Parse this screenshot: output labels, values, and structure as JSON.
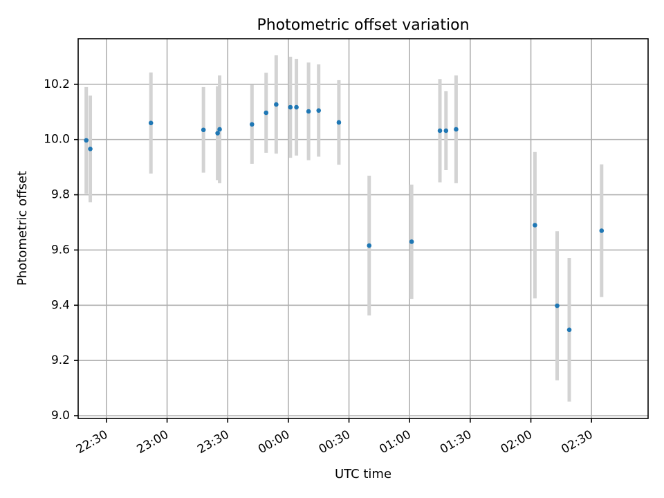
{
  "chart_data": {
    "type": "scatter",
    "title": "Photometric offset variation",
    "xlabel": "UTC time",
    "ylabel": "Photometric offset",
    "x_axis_type": "time",
    "x_range": [
      "22:16",
      "02:58"
    ],
    "x_ticks": [
      "22:30",
      "23:00",
      "23:30",
      "00:00",
      "00:30",
      "01:00",
      "01:30",
      "02:00",
      "02:30"
    ],
    "ylim": [
      8.99,
      10.365
    ],
    "y_ticks": [
      "9.0",
      "9.2",
      "9.4",
      "9.6",
      "9.8",
      "10.0",
      "10.2"
    ],
    "grid": true,
    "colors": {
      "points": "#1f77b4",
      "error_bars": "#d3d3d3",
      "grid": "#b0b0b0"
    },
    "points": [
      {
        "x": "22:20",
        "y": 9.997,
        "yerr": 0.193
      },
      {
        "x": "22:22",
        "y": 9.966,
        "yerr": 0.193
      },
      {
        "x": "22:52",
        "y": 10.06,
        "yerr": 0.183
      },
      {
        "x": "23:18",
        "y": 10.035,
        "yerr": 0.155
      },
      {
        "x": "23:25",
        "y": 10.023,
        "yerr": 0.17
      },
      {
        "x": "23:26",
        "y": 10.037,
        "yerr": 0.195
      },
      {
        "x": "23:42",
        "y": 10.055,
        "yerr": 0.143
      },
      {
        "x": "23:49",
        "y": 10.097,
        "yerr": 0.145
      },
      {
        "x": "23:54",
        "y": 10.127,
        "yerr": 0.178
      },
      {
        "x": "00:01",
        "y": 10.117,
        "yerr": 0.183
      },
      {
        "x": "00:04",
        "y": 10.117,
        "yerr": 0.175
      },
      {
        "x": "00:10",
        "y": 10.102,
        "yerr": 0.177
      },
      {
        "x": "00:15",
        "y": 10.105,
        "yerr": 0.167
      },
      {
        "x": "00:25",
        "y": 10.062,
        "yerr": 0.153
      },
      {
        "x": "00:40",
        "y": 9.616,
        "yerr": 0.253
      },
      {
        "x": "01:01",
        "y": 9.63,
        "yerr": 0.207
      },
      {
        "x": "01:15",
        "y": 10.032,
        "yerr": 0.187
      },
      {
        "x": "01:18",
        "y": 10.032,
        "yerr": 0.143
      },
      {
        "x": "01:23",
        "y": 10.037,
        "yerr": 0.195
      },
      {
        "x": "02:02",
        "y": 9.69,
        "yerr": 0.265
      },
      {
        "x": "02:13",
        "y": 9.398,
        "yerr": 0.27
      },
      {
        "x": "02:19",
        "y": 9.311,
        "yerr": 0.26
      },
      {
        "x": "02:35",
        "y": 9.67,
        "yerr": 0.24
      }
    ]
  }
}
